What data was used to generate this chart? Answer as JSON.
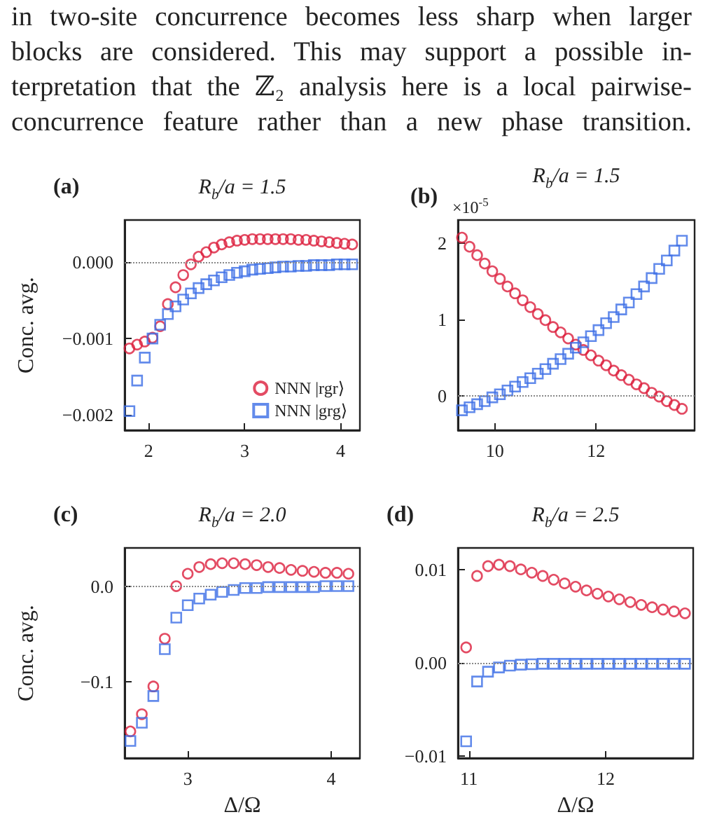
{
  "chart_data": [
    {
      "type": "other",
      "annotations": [
        "in two-site concurrence becomes less sharp when larger\nblocks are considered.  This may support a possible in-\nterpretation that the ℤ₂ analysis here is a local pairwise-\nconcurrence feature rather than a new phase transition."
      ]
    },
    {
      "type": "scatter",
      "title": "R$_{b}$/a = 1.5",
      "ylabel": "Conc. avg.",
      "annotations": [
        "(a)"
      ],
      "legend": "bottom right",
      "x": [
        1.8,
        1.88,
        1.96,
        2.04,
        2.12,
        2.2,
        2.28,
        2.36,
        2.44,
        2.52,
        2.6,
        2.68,
        2.76,
        2.84,
        2.92,
        3,
        3.08,
        3.16,
        3.24,
        3.32,
        3.4,
        3.48,
        3.56,
        3.64,
        3.72,
        3.8,
        3.88,
        3.96,
        4.04,
        4.12
      ],
      "series": [
        {
          "name": "NNN |rgr⟩",
          "color": "#dc1e3c",
          "marker": "circle",
          "values": [
            -0.00113,
            -0.00108,
            -0.00104,
            -0.00099,
            -0.00084,
            -0.00055,
            -0.00033,
            -0.00017,
            -3e-05,
            7e-05,
            0.00013,
            0.00019,
            0.00023,
            0.00026,
            0.00028,
            0.00029,
            0.0003,
            0.0003,
            0.0003,
            0.0003,
            0.0003,
            0.0003,
            0.00029,
            0.00029,
            0.00028,
            0.00027,
            0.00026,
            0.00025,
            0.00024,
            0.00023
          ]
        },
        {
          "name": "NNN |grg⟩",
          "color": "#3c6ee6",
          "marker": "square",
          "values": [
            -0.00195,
            -0.00155,
            -0.00125,
            -0.001,
            -0.00082,
            -0.00068,
            -0.00058,
            -0.00049,
            -0.00041,
            -0.00034,
            -0.00029,
            -0.00024,
            -0.0002,
            -0.00017,
            -0.00014,
            -0.00012,
            -0.0001,
            -9e-05,
            -8e-05,
            -7e-05,
            -6e-05,
            -6e-05,
            -5e-05,
            -5e-05,
            -4e-05,
            -4e-05,
            -4e-05,
            -3e-05,
            -3e-05,
            -3e-05
          ]
        }
      ],
      "xlim": [
        1.75,
        4.2
      ],
      "xticks": [
        2,
        3,
        4
      ],
      "ylim": [
        -0.0022,
        0.00055
      ],
      "yticks": [
        {
          "value": -0.002,
          "label": "−0.002"
        },
        {
          "value": -0.001,
          "label": "−0.001"
        },
        {
          "value": 0,
          "label": "0.000"
        }
      ],
      "ref_lines": [
        {
          "axis": "y",
          "value": 0,
          "color": "#888888",
          "line_style": "dotted"
        }
      ]
    },
    {
      "type": "scatter",
      "title": "R$_{b}$/a = 1.5",
      "annotations": [
        "(b)",
        "×10$^{-5}$"
      ],
      "x": [
        9.35,
        9.5,
        9.65,
        9.8,
        9.95,
        10.1,
        10.25,
        10.4,
        10.55,
        10.7,
        10.85,
        11,
        11.15,
        11.3,
        11.45,
        11.6,
        11.75,
        11.9,
        12.05,
        12.2,
        12.35,
        12.5,
        12.65,
        12.8,
        12.95,
        13.1,
        13.25,
        13.4,
        13.55,
        13.7
      ],
      "series": [
        {
          "color": "#dc1e3c",
          "marker": "circle",
          "values": [
            2.07,
            1.95,
            1.84,
            1.73,
            1.63,
            1.53,
            1.43,
            1.34,
            1.25,
            1.16,
            1.07,
            0.99,
            0.9,
            0.83,
            0.75,
            0.67,
            0.6,
            0.53,
            0.46,
            0.4,
            0.33,
            0.27,
            0.21,
            0.15,
            0.1,
            0.04,
            -0.01,
            -0.07,
            -0.12,
            -0.17
          ]
        },
        {
          "color": "#3c6ee6",
          "marker": "square",
          "values": [
            -0.19,
            -0.15,
            -0.11,
            -0.07,
            -0.02,
            0.02,
            0.07,
            0.12,
            0.18,
            0.23,
            0.29,
            0.35,
            0.42,
            0.48,
            0.55,
            0.63,
            0.7,
            0.78,
            0.86,
            0.95,
            1.03,
            1.13,
            1.22,
            1.33,
            1.43,
            1.54,
            1.66,
            1.77,
            1.9,
            2.03
          ]
        }
      ],
      "xlim": [
        9.27,
        13.95
      ],
      "xticks": [
        10,
        12
      ],
      "ylim": [
        -0.45,
        2.3
      ],
      "yticks": [
        0,
        1,
        2
      ],
      "ref_lines": [
        {
          "axis": "y",
          "value": 0,
          "color": "#888888",
          "line_style": "dotted"
        }
      ]
    },
    {
      "type": "scatter",
      "title": "R$_{b}$/a = 2.0",
      "ylabel": "Conc. avg.",
      "xlabel": "Δ/Ω",
      "annotations": [
        "(c)"
      ],
      "x": [
        2.6,
        2.68,
        2.76,
        2.84,
        2.92,
        3,
        3.08,
        3.16,
        3.24,
        3.32,
        3.4,
        3.48,
        3.56,
        3.64,
        3.72,
        3.8,
        3.88,
        3.96,
        4.04,
        4.12
      ],
      "series": [
        {
          "color": "#dc1e3c",
          "marker": "circle",
          "values": [
            -0.152,
            -0.134,
            -0.105,
            -0.055,
            0,
            0.013,
            0.02,
            0.023,
            0.024,
            0.024,
            0.023,
            0.022,
            0.02,
            0.019,
            0.017,
            0.016,
            0.015,
            0.014,
            0.014,
            0.013
          ]
        },
        {
          "color": "#3c6ee6",
          "marker": "square",
          "values": [
            -0.162,
            -0.143,
            -0.115,
            -0.066,
            -0.033,
            -0.02,
            -0.013,
            -0.009,
            -0.006,
            -0.004,
            -0.002,
            -0.002,
            -0.001,
            -0.001,
            -0.001,
            -0.001,
            -0.001,
            0,
            0,
            0
          ]
        }
      ],
      "xlim": [
        2.56,
        4.2
      ],
      "xticks": [
        3,
        4
      ],
      "ylim": [
        -0.18,
        0.04
      ],
      "yticks": [
        {
          "value": -0.1,
          "label": "−0.1"
        },
        {
          "value": 0,
          "label": "0.0"
        }
      ],
      "ref_lines": [
        {
          "axis": "y",
          "value": 0,
          "color": "#888888",
          "line_style": "dotted"
        }
      ]
    },
    {
      "type": "scatter",
      "title": "R$_{b}$/a = 2.5",
      "xlabel": "Δ/Ω",
      "annotations": [
        "(d)"
      ],
      "x": [
        10.98,
        11.06,
        11.14,
        11.22,
        11.3,
        11.38,
        11.46,
        11.54,
        11.62,
        11.7,
        11.78,
        11.86,
        11.94,
        12.02,
        12.1,
        12.18,
        12.26,
        12.34,
        12.42,
        12.5,
        12.58
      ],
      "series": [
        {
          "color": "#dc1e3c",
          "marker": "circle",
          "values": [
            0.00165,
            0.0093,
            0.01035,
            0.0105,
            0.01035,
            0.01,
            0.00965,
            0.0093,
            0.0089,
            0.0085,
            0.00815,
            0.00775,
            0.0074,
            0.0071,
            0.0068,
            0.0065,
            0.0062,
            0.00595,
            0.0057,
            0.0055,
            0.0053
          ]
        },
        {
          "color": "#3c6ee6",
          "marker": "square",
          "values": [
            -0.0084,
            -0.002,
            -0.00095,
            -0.0005,
            -0.0003,
            -0.0002,
            -0.00015,
            -0.0001,
            -0.0001,
            -0.0001,
            -0.0001,
            -0.0001,
            -0.0001,
            -0.0001,
            -0.0001,
            -0.0001,
            -0.0001,
            -0.0001,
            -0.0001,
            -0.0001,
            -0.0001
          ]
        }
      ],
      "xlim": [
        10.92,
        12.64
      ],
      "xticks": [
        11,
        12
      ],
      "ylim": [
        -0.0102,
        0.0123
      ],
      "yticks": [
        {
          "value": -0.01,
          "label": "−0.01"
        },
        {
          "value": 0,
          "label": "0.00"
        },
        {
          "value": 0.01,
          "label": "0.01"
        }
      ],
      "ref_lines": [
        {
          "axis": "y",
          "value": 0,
          "color": "#888888",
          "line_style": "dotted"
        }
      ]
    }
  ]
}
